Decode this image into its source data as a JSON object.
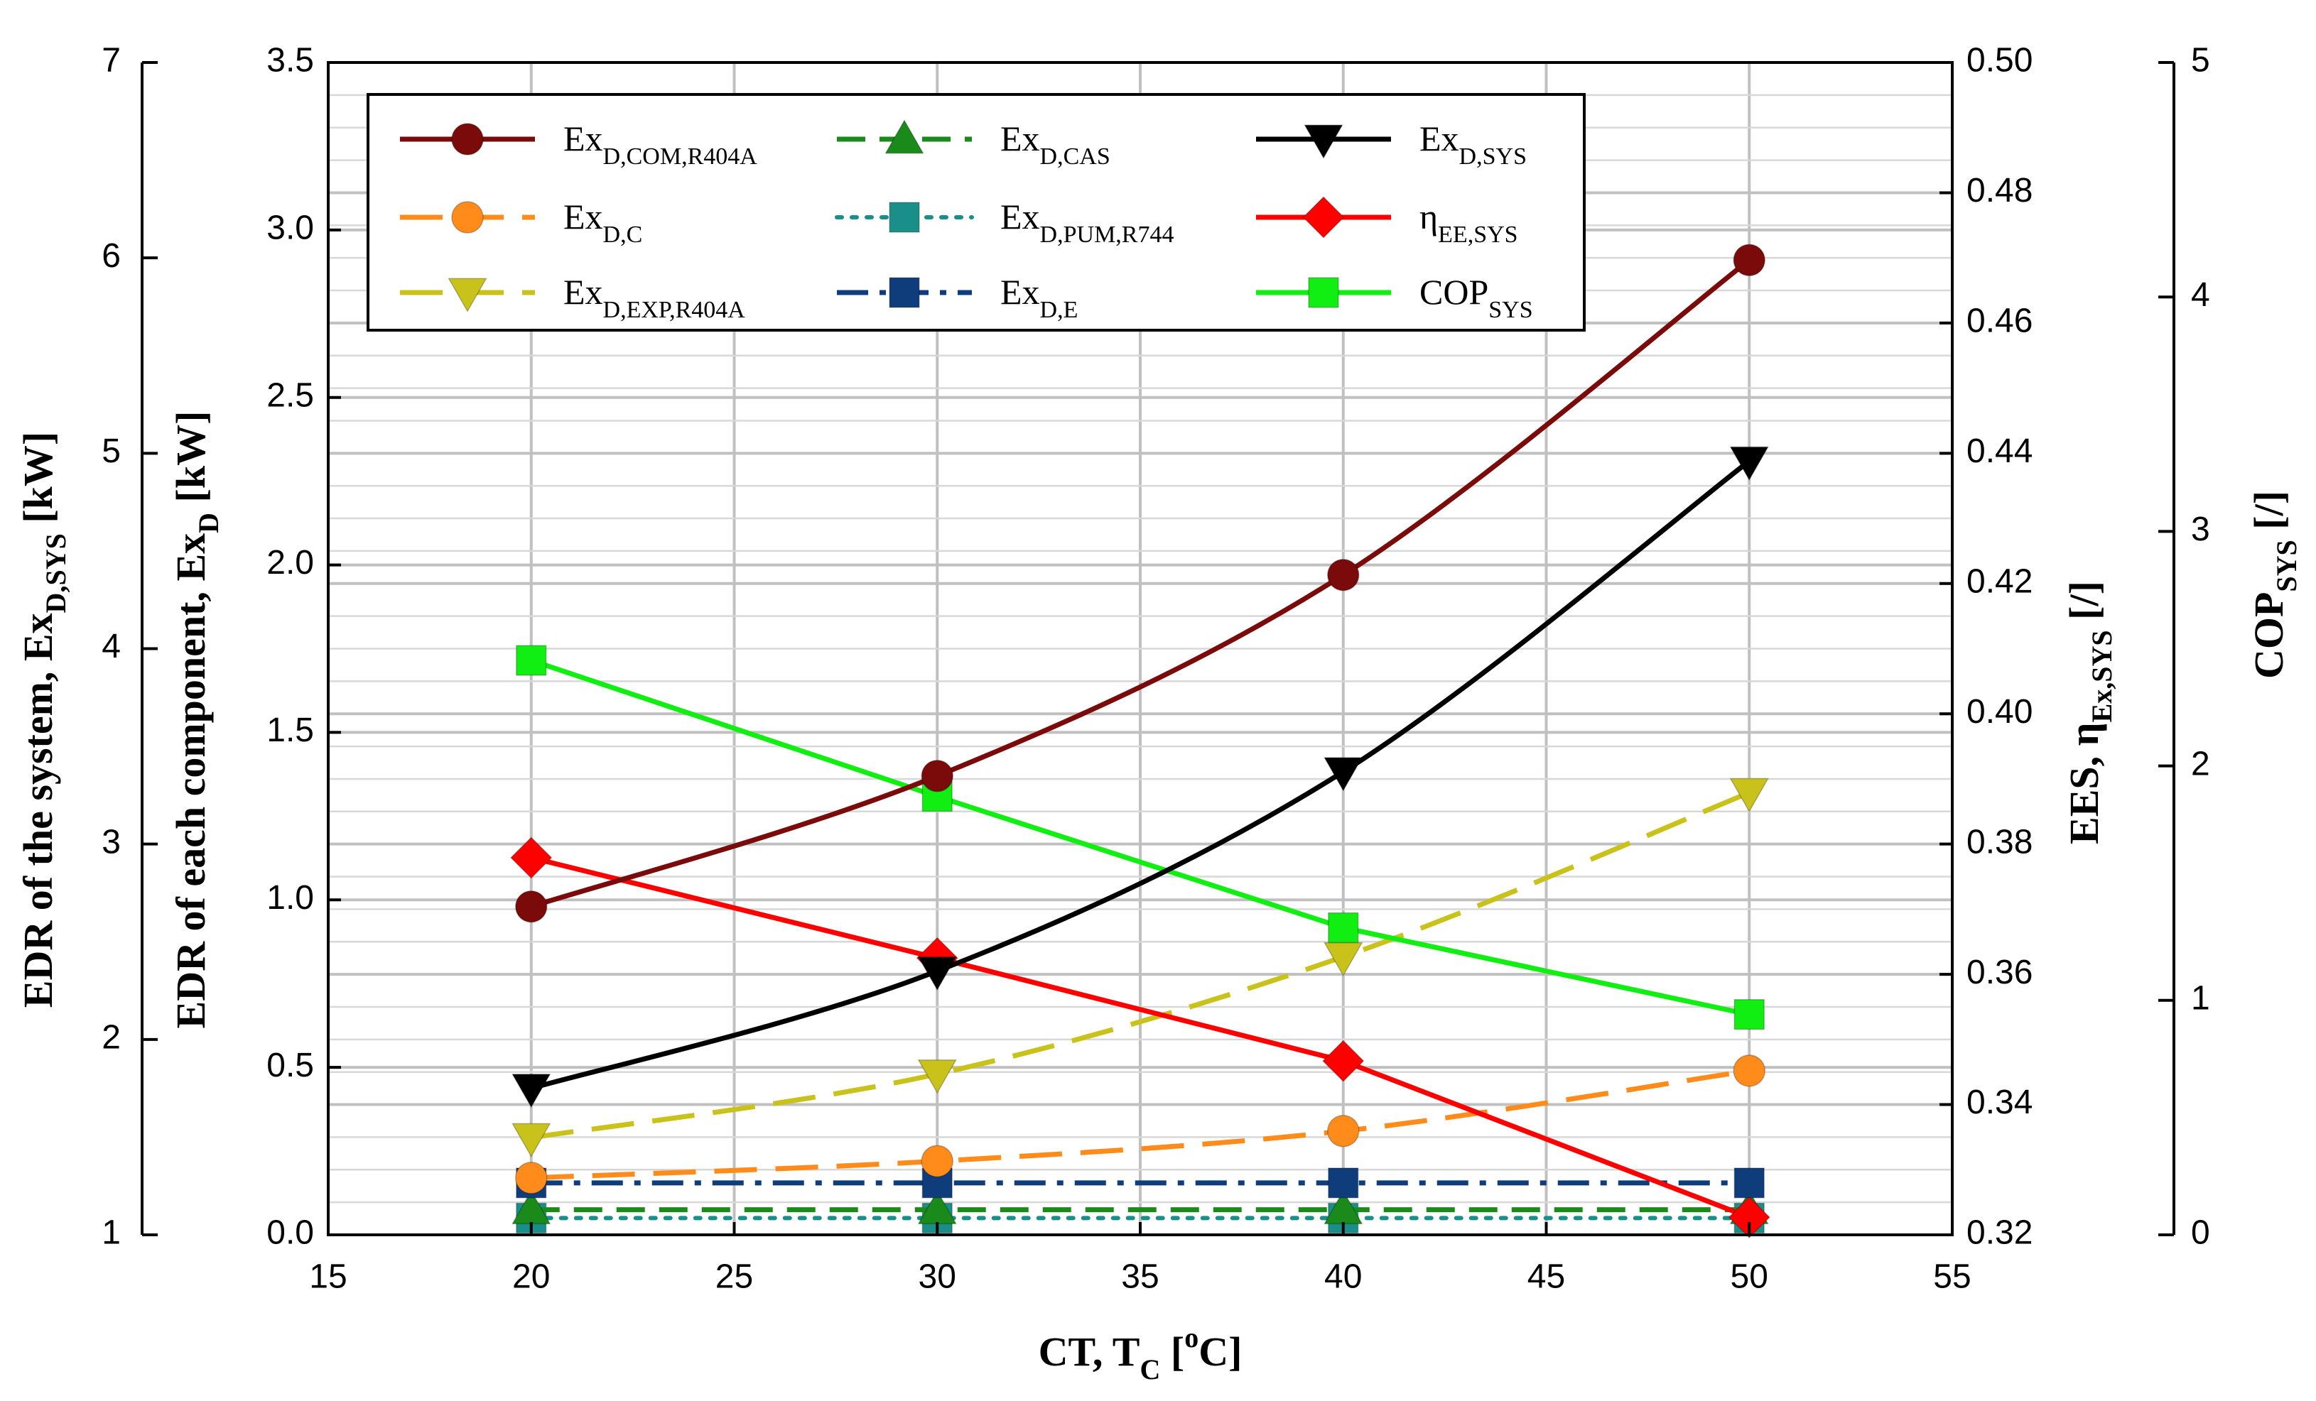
{
  "chart_data": {
    "type": "line",
    "x_axis": {
      "label_main": "CT, T",
      "label_sub": "C",
      "label_bracket_open": " [",
      "label_sup": "o",
      "label_unit": "C]",
      "lim": [
        15,
        55
      ],
      "ticks": [
        "15",
        "20",
        "25",
        "30",
        "35",
        "40",
        "45",
        "50",
        "55"
      ]
    },
    "y_left_outer": {
      "label_main": "EDR of the system, Ex",
      "label_sub": "D,SYS",
      "label_unit": " [kW]",
      "lim": [
        1,
        7
      ],
      "ticks": [
        "1",
        "2",
        "3",
        "4",
        "5",
        "6",
        "7"
      ]
    },
    "y_left_inner": {
      "label_main": "EDR of each component, Ex",
      "label_sub": "D",
      "label_unit": " [kW]",
      "lim": [
        0,
        3.5
      ],
      "ticks": [
        "0.0",
        "0.5",
        "1.0",
        "1.5",
        "2.0",
        "2.5",
        "3.0",
        "3.5"
      ]
    },
    "y_right_inner": {
      "label_main": "EES, η",
      "label_sub": "Ex,SYS",
      "label_unit": " [/]",
      "lim": [
        0.32,
        0.5
      ],
      "ticks": [
        "0.32",
        "0.34",
        "0.36",
        "0.38",
        "0.40",
        "0.42",
        "0.44",
        "0.46",
        "0.48",
        "0.50"
      ]
    },
    "y_right_outer": {
      "label_main": "COP",
      "label_sub": "SYS",
      "label_unit": " [/]",
      "lim": [
        0,
        5
      ],
      "ticks": [
        "0",
        "1",
        "2",
        "3",
        "4",
        "5"
      ]
    },
    "grid": true,
    "legend_position": "top-left",
    "series": [
      {
        "key": "ex_com",
        "name": "Ex",
        "name_sub": "D,COM,R404A",
        "axis": "y_left_inner",
        "color": "#7b0a0a",
        "marker": "circle",
        "dash": "solid",
        "x": [
          20,
          30,
          40,
          50
        ],
        "y": [
          0.98,
          1.37,
          1.97,
          2.91
        ]
      },
      {
        "key": "ex_c",
        "name": "Ex",
        "name_sub": "D,C",
        "axis": "y_left_inner",
        "color": "#ff8c1a",
        "marker": "circle",
        "dash": "longdash",
        "x": [
          20,
          30,
          40,
          50
        ],
        "y": [
          0.17,
          0.22,
          0.31,
          0.49
        ]
      },
      {
        "key": "ex_exp",
        "name": "Ex",
        "name_sub": "D,EXP,R404A",
        "axis": "y_left_inner",
        "color": "#c8c21a",
        "marker": "triangle-down",
        "dash": "longdash",
        "x": [
          20,
          30,
          40,
          50
        ],
        "y": [
          0.29,
          0.48,
          0.83,
          1.32
        ]
      },
      {
        "key": "ex_cas",
        "name": "Ex",
        "name_sub": "D,CAS",
        "axis": "y_left_inner",
        "color": "#1a8a1a",
        "marker": "triangle-up",
        "dash": "dash",
        "x": [
          20,
          30,
          40,
          50
        ],
        "y": [
          0.075,
          0.075,
          0.075,
          0.075
        ]
      },
      {
        "key": "ex_pum",
        "name": "Ex",
        "name_sub": "D,PUM,R744",
        "axis": "y_left_inner",
        "color": "#1a8f8a",
        "marker": "square",
        "dash": "dot",
        "x": [
          20,
          30,
          40,
          50
        ],
        "y": [
          0.05,
          0.05,
          0.05,
          0.05
        ]
      },
      {
        "key": "ex_e",
        "name": "Ex",
        "name_sub": "D,E",
        "axis": "y_left_inner",
        "color": "#0f3c7a",
        "marker": "square",
        "dash": "dashdot",
        "x": [
          20,
          30,
          40,
          50
        ],
        "y": [
          0.155,
          0.155,
          0.155,
          0.155
        ]
      },
      {
        "key": "ex_sys",
        "name": "Ex",
        "name_sub": "D,SYS",
        "axis": "y_left_outer",
        "color": "#000000",
        "marker": "triangle-down",
        "dash": "solid",
        "x": [
          20,
          30,
          40,
          50
        ],
        "y": [
          1.75,
          2.35,
          3.37,
          4.96
        ]
      },
      {
        "key": "eta",
        "name": "η",
        "name_sub": "EE,SYS",
        "axis": "y_right_inner",
        "color": "#ff0000",
        "marker": "diamond",
        "dash": "solid",
        "x": [
          20,
          30,
          40,
          50
        ],
        "y": [
          0.3779,
          0.3625,
          0.3467,
          0.3227
        ]
      },
      {
        "key": "cop",
        "name": "COP",
        "name_sub": "SYS",
        "axis": "y_right_outer",
        "color": "#11ee11",
        "marker": "square",
        "dash": "solid",
        "x": [
          20,
          30,
          40,
          50
        ],
        "y": [
          2.45,
          1.87,
          1.31,
          0.94
        ]
      }
    ]
  }
}
